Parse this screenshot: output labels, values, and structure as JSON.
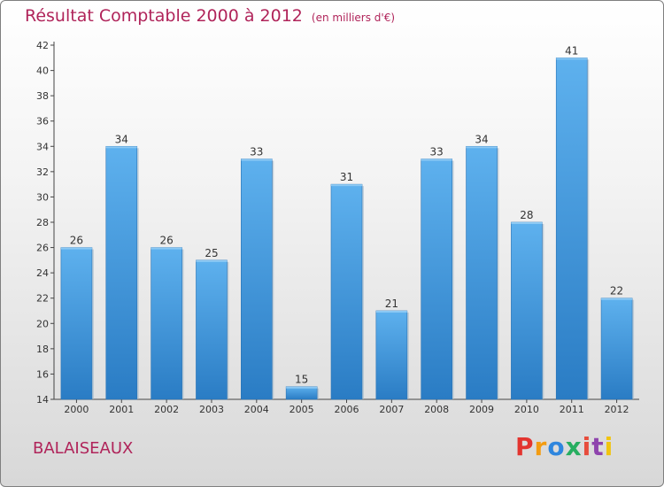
{
  "chart_data": {
    "type": "bar",
    "title": "Résultat Comptable 2000 à 2012",
    "subtitle": "(en milliers d'€)",
    "categories": [
      "2000",
      "2001",
      "2002",
      "2003",
      "2004",
      "2005",
      "2006",
      "2007",
      "2008",
      "2009",
      "2010",
      "2011",
      "2012"
    ],
    "values": [
      26,
      34,
      26,
      25,
      33,
      15,
      31,
      21,
      33,
      34,
      28,
      41,
      22
    ],
    "ylim": [
      14,
      42
    ],
    "yticks": [
      14,
      16,
      18,
      20,
      22,
      24,
      26,
      28,
      30,
      32,
      34,
      36,
      38,
      40,
      42
    ],
    "xlabel": "",
    "ylabel": "",
    "grid": false,
    "bar_color": "#3b8fd6"
  },
  "footer": {
    "city": "BALAISEAUX",
    "brand": "Proxiti",
    "brand_colors": [
      "#e3342f",
      "#f39c12",
      "#2e86de",
      "#27ae60",
      "#e74c3c",
      "#8e44ad",
      "#f1c40f"
    ]
  }
}
